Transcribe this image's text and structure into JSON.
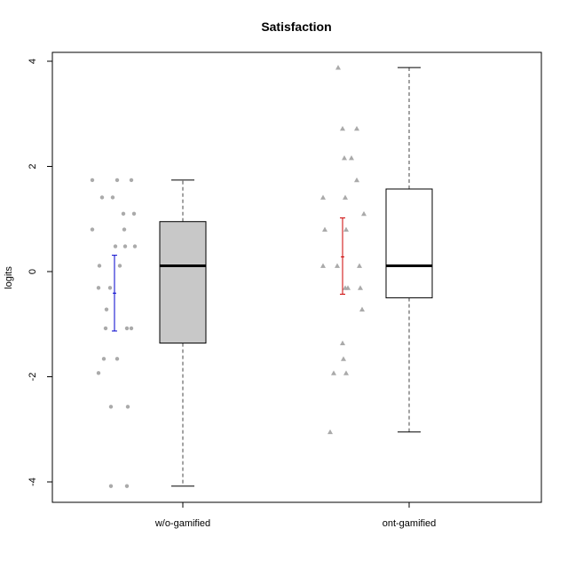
{
  "chart_data": {
    "type": "boxplot",
    "title": "Satisfaction",
    "xlabel": "",
    "ylabel": "logits",
    "ylim": [
      -4.4,
      4.2
    ],
    "yticks": [
      -4,
      -2,
      0,
      2,
      4
    ],
    "grid": false,
    "categories": [
      "w/o-gamified",
      "ont-gamified"
    ],
    "boxes": [
      {
        "category": "w/o-gamified",
        "whisker_low": -4.08,
        "q1": -1.36,
        "median": 0.11,
        "q3": 0.95,
        "whisker_high": 1.74,
        "fill": "#c8c8c8"
      },
      {
        "category": "ont-gamified",
        "whisker_low": -3.05,
        "q1": -0.5,
        "median": 0.11,
        "q3": 1.57,
        "whisker_high": 3.88,
        "fill": "#ffffff"
      }
    ],
    "interval_bars": [
      {
        "category": "w/o-gamified",
        "low": -1.13,
        "mid": -0.41,
        "high": 0.31,
        "color": "#0000cc"
      },
      {
        "category": "ont-gamified",
        "low": -0.43,
        "mid": 0.28,
        "high": 1.02,
        "color": "#cc0000"
      }
    ],
    "points": [
      {
        "category": "w/o-gamified",
        "marker": "circle",
        "color": "#aaaaaa",
        "values": [
          {
            "o": -25,
            "y": 1.74
          },
          {
            "o": 3,
            "y": 1.74
          },
          {
            "o": 19,
            "y": 1.74
          },
          {
            "o": -14,
            "y": 1.41
          },
          {
            "o": -2,
            "y": 1.41
          },
          {
            "o": 10,
            "y": 1.1
          },
          {
            "o": 22,
            "y": 1.1
          },
          {
            "o": -25,
            "y": 0.8
          },
          {
            "o": 11,
            "y": 0.8
          },
          {
            "o": 1,
            "y": 0.48
          },
          {
            "o": 12,
            "y": 0.48
          },
          {
            "o": 23,
            "y": 0.48
          },
          {
            "o": -17,
            "y": 0.11
          },
          {
            "o": 6,
            "y": 0.11
          },
          {
            "o": -18,
            "y": -0.31
          },
          {
            "o": -5,
            "y": -0.31
          },
          {
            "o": -9,
            "y": -0.72
          },
          {
            "o": -10,
            "y": -1.08
          },
          {
            "o": 14,
            "y": -1.08
          },
          {
            "o": 19,
            "y": -1.08
          },
          {
            "o": -12,
            "y": -1.66
          },
          {
            "o": 3,
            "y": -1.66
          },
          {
            "o": -18,
            "y": -1.93
          },
          {
            "o": -4,
            "y": -2.57
          },
          {
            "o": 15,
            "y": -2.57
          },
          {
            "o": -4,
            "y": -4.08
          },
          {
            "o": 14,
            "y": -4.08
          }
        ]
      },
      {
        "category": "ont-gamified",
        "marker": "triangle",
        "color": "#aaaaaa",
        "values": [
          {
            "o": -5,
            "y": 3.88
          },
          {
            "o": 0,
            "y": 2.72
          },
          {
            "o": 16,
            "y": 2.72
          },
          {
            "o": 2,
            "y": 2.16
          },
          {
            "o": 10,
            "y": 2.16
          },
          {
            "o": 16,
            "y": 1.74
          },
          {
            "o": -22,
            "y": 1.41
          },
          {
            "o": 3,
            "y": 1.41
          },
          {
            "o": 24,
            "y": 1.1
          },
          {
            "o": -20,
            "y": 0.8
          },
          {
            "o": 4,
            "y": 0.8
          },
          {
            "o": -22,
            "y": 0.11
          },
          {
            "o": -6,
            "y": 0.11
          },
          {
            "o": 19,
            "y": 0.11
          },
          {
            "o": 3,
            "y": -0.31
          },
          {
            "o": 6,
            "y": -0.31
          },
          {
            "o": 20,
            "y": -0.31
          },
          {
            "o": 22,
            "y": -0.72
          },
          {
            "o": 0,
            "y": -1.36
          },
          {
            "o": 1,
            "y": -1.66
          },
          {
            "o": -10,
            "y": -1.93
          },
          {
            "o": 4,
            "y": -1.93
          },
          {
            "o": -14,
            "y": -3.05
          }
        ]
      }
    ]
  }
}
